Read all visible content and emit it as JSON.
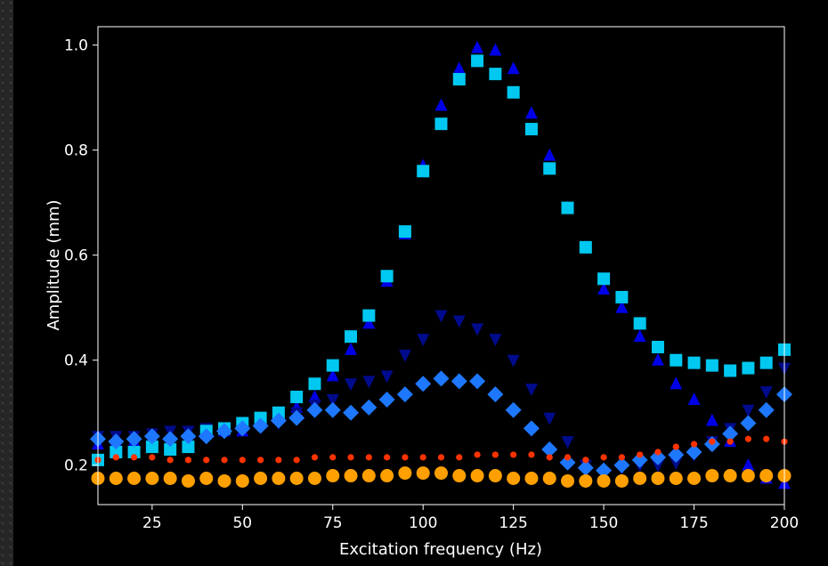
{
  "chart_data": {
    "type": "scatter",
    "title": "",
    "xlabel": "Excitation frequency (Hz)",
    "ylabel": "Amplitude (mm)",
    "xlim": [
      10,
      200
    ],
    "ylim": [
      0.125,
      1.035
    ],
    "xticks": [
      25,
      50,
      75,
      100,
      125,
      150,
      175,
      200
    ],
    "yticks": [
      0.2,
      0.4,
      0.6,
      0.8,
      1.0
    ],
    "ytick_labels": [
      "0.2",
      "0.4",
      "0.6",
      "0.8",
      "1.0"
    ],
    "grid": false,
    "x": [
      10,
      15,
      20,
      25,
      30,
      35,
      40,
      45,
      50,
      55,
      60,
      65,
      70,
      75,
      80,
      85,
      90,
      95,
      100,
      105,
      110,
      115,
      120,
      125,
      130,
      135,
      140,
      145,
      150,
      155,
      160,
      165,
      170,
      175,
      180,
      185,
      190,
      195,
      200
    ],
    "series": [
      {
        "marker": "triangle-up",
        "color": "#0000e6",
        "values": [
          0.24,
          0.245,
          0.245,
          0.25,
          0.255,
          0.26,
          0.26,
          0.265,
          0.265,
          0.28,
          0.29,
          0.31,
          0.33,
          0.37,
          0.42,
          0.47,
          0.55,
          0.64,
          0.77,
          0.885,
          0.955,
          0.995,
          0.99,
          0.955,
          0.87,
          0.79,
          0.69,
          0.615,
          0.535,
          0.5,
          0.445,
          0.4,
          0.355,
          0.325,
          0.285,
          0.245,
          0.2,
          0.175,
          0.165
        ]
      },
      {
        "marker": "triangle-down",
        "color": "#000b8c",
        "values": [
          0.255,
          0.255,
          0.255,
          0.26,
          0.265,
          0.265,
          0.27,
          0.27,
          0.275,
          0.275,
          0.28,
          0.3,
          0.315,
          0.325,
          0.355,
          0.36,
          0.37,
          0.41,
          0.44,
          0.485,
          0.475,
          0.46,
          0.44,
          0.4,
          0.345,
          0.29,
          0.245,
          0.2,
          0.185,
          0.195,
          0.2,
          0.2,
          0.205,
          0.22,
          0.245,
          0.27,
          0.305,
          0.34,
          0.385
        ]
      },
      {
        "marker": "square",
        "color": "#00c8f0",
        "values": [
          0.21,
          0.225,
          0.225,
          0.235,
          0.23,
          0.235,
          0.265,
          0.27,
          0.28,
          0.29,
          0.3,
          0.33,
          0.355,
          0.39,
          0.445,
          0.485,
          0.56,
          0.645,
          0.76,
          0.85,
          0.935,
          0.97,
          0.945,
          0.91,
          0.84,
          0.765,
          0.69,
          0.615,
          0.555,
          0.52,
          0.47,
          0.425,
          0.4,
          0.395,
          0.39,
          0.38,
          0.385,
          0.395,
          0.42
        ]
      },
      {
        "marker": "diamond",
        "color": "#1e78ff",
        "values": [
          0.25,
          0.245,
          0.25,
          0.255,
          0.25,
          0.255,
          0.255,
          0.265,
          0.27,
          0.275,
          0.285,
          0.29,
          0.305,
          0.305,
          0.3,
          0.31,
          0.325,
          0.335,
          0.355,
          0.365,
          0.36,
          0.36,
          0.335,
          0.305,
          0.27,
          0.23,
          0.205,
          0.195,
          0.19,
          0.2,
          0.21,
          0.215,
          0.22,
          0.225,
          0.24,
          0.26,
          0.28,
          0.305,
          0.335
        ]
      },
      {
        "marker": "small-circle",
        "color": "#ff3300",
        "values": [
          0.21,
          0.215,
          0.215,
          0.215,
          0.21,
          0.21,
          0.21,
          0.21,
          0.21,
          0.21,
          0.21,
          0.21,
          0.215,
          0.215,
          0.215,
          0.215,
          0.215,
          0.215,
          0.215,
          0.215,
          0.215,
          0.22,
          0.22,
          0.22,
          0.22,
          0.215,
          0.215,
          0.21,
          0.215,
          0.215,
          0.22,
          0.225,
          0.235,
          0.24,
          0.245,
          0.245,
          0.25,
          0.25,
          0.245
        ]
      },
      {
        "marker": "large-circle",
        "color": "#ffa000",
        "values": [
          0.175,
          0.175,
          0.175,
          0.175,
          0.175,
          0.17,
          0.175,
          0.17,
          0.17,
          0.175,
          0.175,
          0.175,
          0.175,
          0.18,
          0.18,
          0.18,
          0.18,
          0.185,
          0.185,
          0.185,
          0.18,
          0.18,
          0.18,
          0.175,
          0.175,
          0.175,
          0.17,
          0.17,
          0.17,
          0.17,
          0.175,
          0.175,
          0.175,
          0.175,
          0.18,
          0.18,
          0.18,
          0.18,
          0.18
        ]
      }
    ]
  }
}
